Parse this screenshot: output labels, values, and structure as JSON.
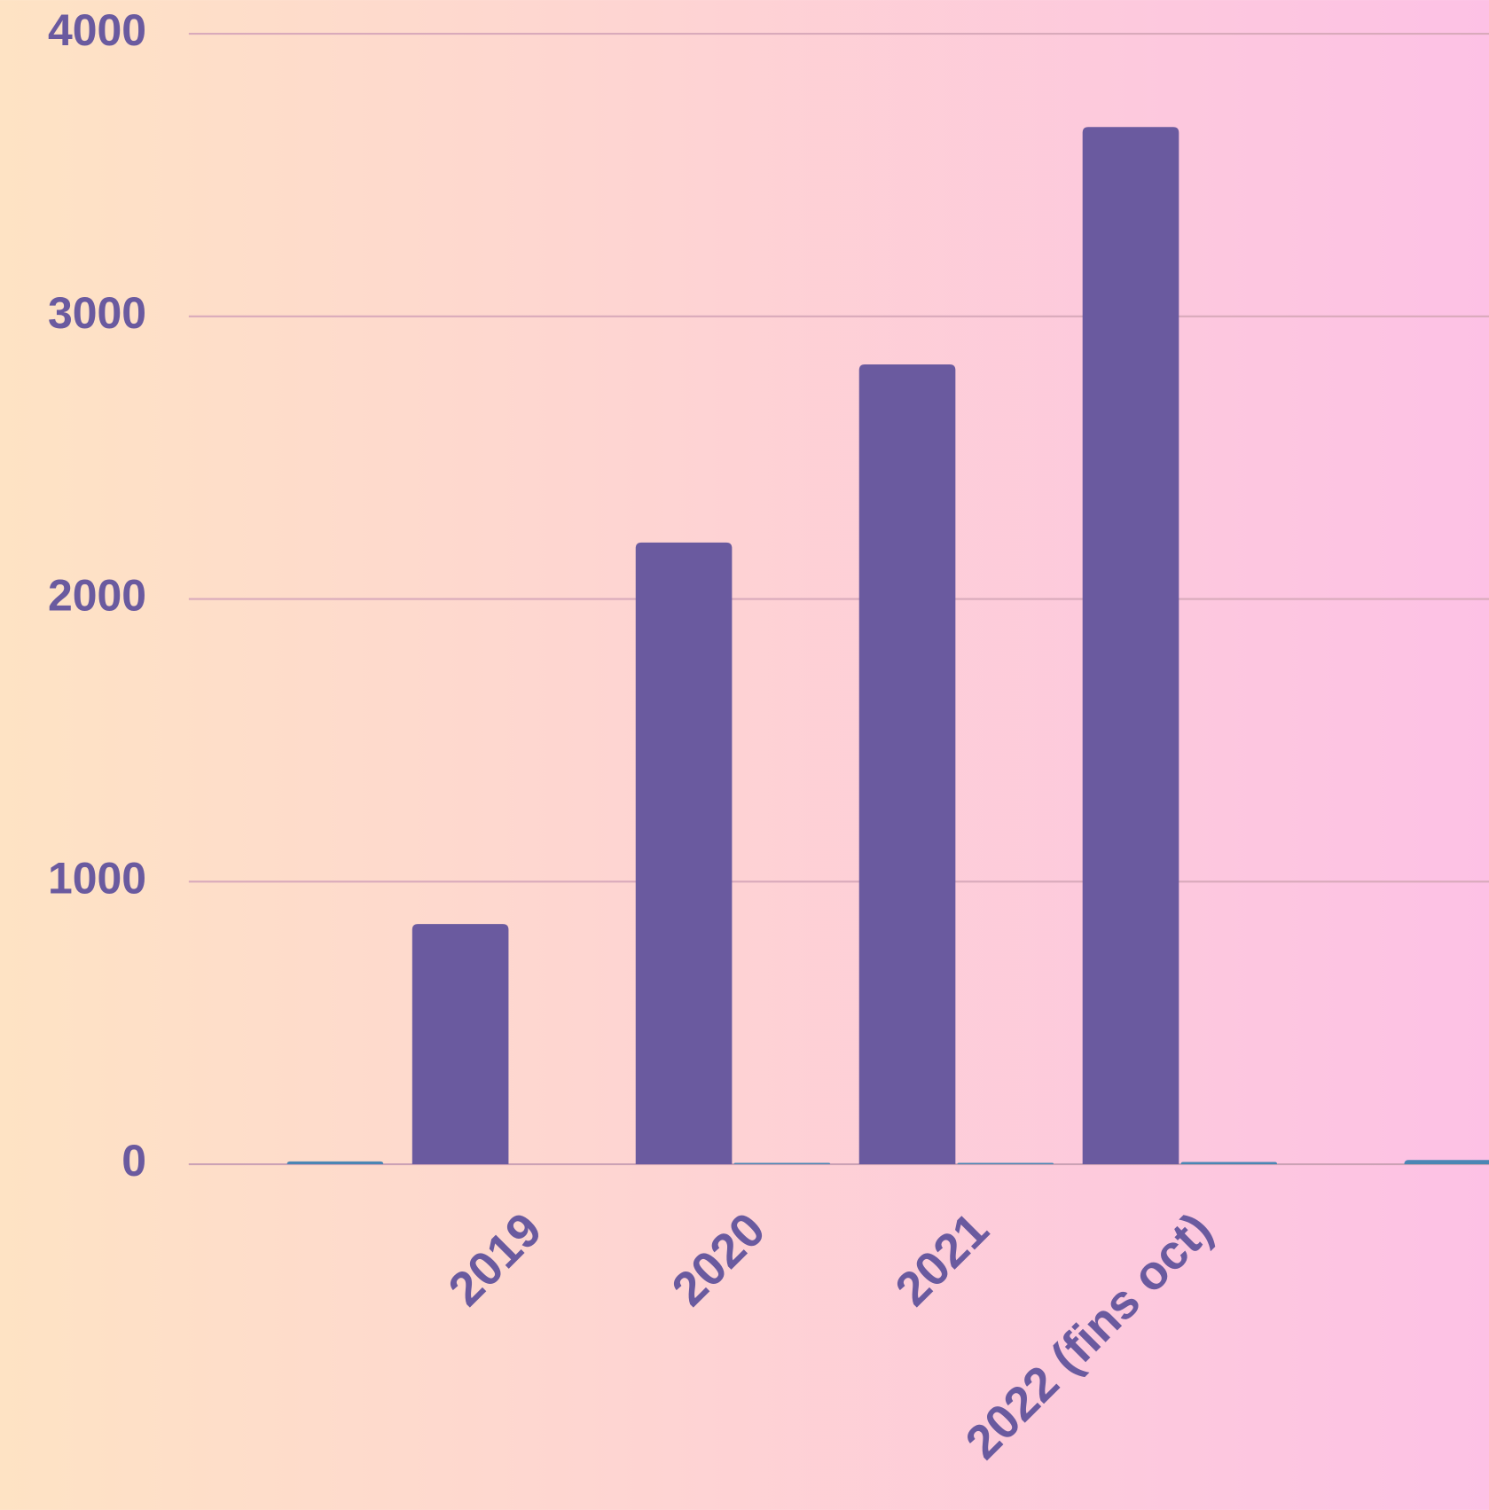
{
  "chart_data": {
    "type": "bar",
    "categories": [
      null,
      "2019",
      "2020",
      "2021",
      "2022 (fins oct)",
      null
    ],
    "series": [
      {
        "color": "#6a5a9f",
        "values": [
          0,
          850,
          2200,
          2830,
          3670,
          0
        ]
      },
      {
        "color": "#4a86b4",
        "values": [
          10,
          0,
          5,
          5,
          8,
          15
        ]
      }
    ],
    "ylim": [
      0,
      4000
    ],
    "yticks": [
      0,
      1000,
      2000,
      3000,
      4000
    ],
    "grid": true
  }
}
